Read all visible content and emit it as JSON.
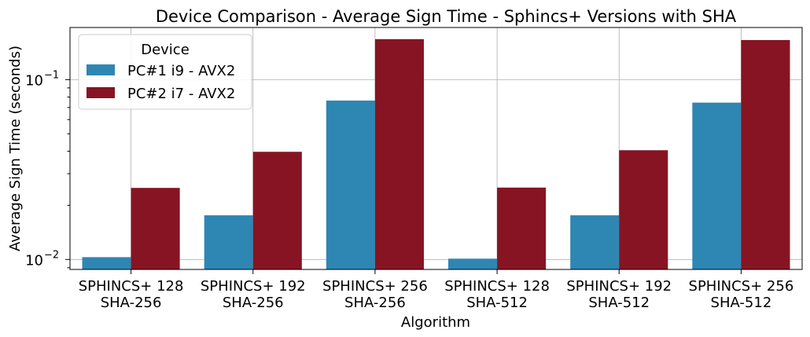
{
  "chart_data": {
    "type": "bar",
    "title": "Device Comparison - Average Sign Time - Sphincs+ Versions with SHA",
    "xlabel": "Algorithm",
    "ylabel": "Average Sign Time (seconds)",
    "yscale": "log",
    "ylim": [
      0.0088,
      0.195
    ],
    "grid": true,
    "legend": {
      "title": "Device",
      "placement": "top-left"
    },
    "categories": [
      [
        "SPHINCS+ 128",
        "SHA-256"
      ],
      [
        "SPHINCS+ 192",
        "SHA-256"
      ],
      [
        "SPHINCS+ 256",
        "SHA-256"
      ],
      [
        "SPHINCS+ 128",
        "SHA-512"
      ],
      [
        "SPHINCS+ 192",
        "SHA-512"
      ],
      [
        "SPHINCS+ 256",
        "SHA-512"
      ]
    ],
    "yticks": [
      {
        "value": 0.01,
        "base": "10",
        "exp": "−2"
      },
      {
        "value": 0.1,
        "base": "10",
        "exp": "−1"
      }
    ],
    "series": [
      {
        "name": "PC#1 i9 - AVX2",
        "color": "#2e86b3",
        "values": [
          0.0103,
          0.0176,
          0.0765,
          0.0101,
          0.0176,
          0.0745
        ]
      },
      {
        "name": "PC#2 i7 - AVX2",
        "color": "#871423",
        "values": [
          0.025,
          0.0397,
          0.168,
          0.0251,
          0.0405,
          0.166
        ]
      }
    ]
  }
}
